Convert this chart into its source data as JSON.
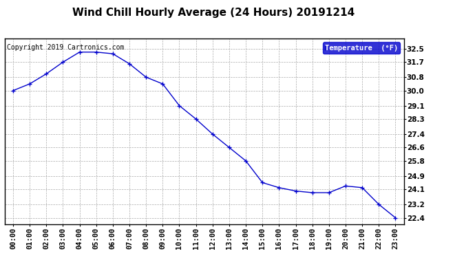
{
  "title": "Wind Chill Hourly Average (24 Hours) 20191214",
  "copyright_text": "Copyright 2019 Cartronics.com",
  "legend_label": "Temperature  (°F)",
  "x_labels": [
    "00:00",
    "01:00",
    "02:00",
    "03:00",
    "04:00",
    "05:00",
    "06:00",
    "07:00",
    "08:00",
    "09:00",
    "10:00",
    "11:00",
    "12:00",
    "13:00",
    "14:00",
    "15:00",
    "16:00",
    "17:00",
    "18:00",
    "19:00",
    "20:00",
    "21:00",
    "22:00",
    "23:00"
  ],
  "y_values": [
    30.0,
    30.4,
    31.0,
    31.7,
    32.3,
    32.3,
    32.2,
    31.6,
    30.8,
    30.4,
    29.1,
    28.3,
    27.4,
    26.6,
    25.8,
    24.5,
    24.2,
    24.0,
    23.9,
    23.9,
    24.3,
    24.2,
    23.2,
    22.4
  ],
  "yticks": [
    32.5,
    31.7,
    30.8,
    30.0,
    29.1,
    28.3,
    27.4,
    26.6,
    25.8,
    24.9,
    24.1,
    23.2,
    22.4
  ],
  "ymin": 22.0,
  "ymax": 33.1,
  "line_color": "#0000cc",
  "marker": "+",
  "marker_size": 4,
  "background_color": "#ffffff",
  "plot_bg_color": "#ffffff",
  "grid_color": "#aaaaaa",
  "title_fontsize": 11,
  "tick_fontsize": 7.5,
  "copyright_fontsize": 7,
  "legend_bg": "#0000cc",
  "legend_text_color": "#ffffff"
}
